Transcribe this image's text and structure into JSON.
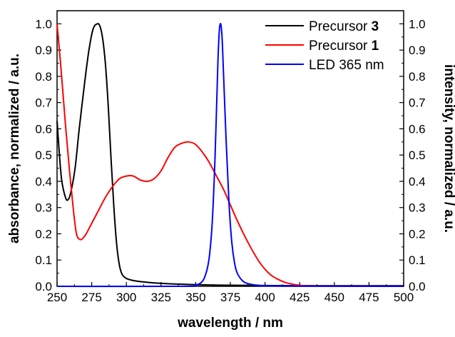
{
  "chart_data": {
    "type": "line",
    "xlabel": "wavelength / nm",
    "ylabel_left": "absorbance, normalized / a.u.",
    "ylabel_right": "intensity, normalized / a.u.",
    "xlim": [
      250,
      500
    ],
    "ylim": [
      0,
      1.05
    ],
    "xticks": [
      250,
      275,
      300,
      325,
      350,
      375,
      400,
      425,
      450,
      475,
      500
    ],
    "yticks": [
      0.0,
      0.1,
      0.2,
      0.3,
      0.4,
      0.5,
      0.6,
      0.7,
      0.8,
      0.9,
      1.0
    ],
    "xtick_labels": [
      "250",
      "275",
      "300",
      "325",
      "350",
      "375",
      "400",
      "425",
      "450",
      "475",
      "500"
    ],
    "ytick_labels": [
      "0.0",
      "0.1",
      "0.2",
      "0.3",
      "0.4",
      "0.5",
      "0.6",
      "0.7",
      "0.8",
      "0.9",
      "1.0"
    ],
    "legend_position": "top-right",
    "grid": false,
    "series": [
      {
        "name_prefix": "Precursor ",
        "name_bold": "3",
        "color": "#000000",
        "x": [
          250,
          253,
          256,
          258,
          260,
          263,
          266,
          270,
          273,
          276,
          279,
          281,
          283,
          285,
          287,
          289,
          291,
          293,
          295,
          297,
          300,
          305,
          310,
          320,
          330,
          340,
          350,
          375,
          400,
          450,
          500
        ],
        "y": [
          0.63,
          0.42,
          0.34,
          0.33,
          0.36,
          0.45,
          0.6,
          0.78,
          0.9,
          0.98,
          1.0,
          0.99,
          0.94,
          0.84,
          0.68,
          0.48,
          0.3,
          0.16,
          0.08,
          0.045,
          0.03,
          0.022,
          0.018,
          0.013,
          0.01,
          0.008,
          0.006,
          0.004,
          0.003,
          0.002,
          0.002
        ]
      },
      {
        "name_prefix": "Precursor ",
        "name_bold": "1",
        "color": "#ff0000",
        "x": [
          250,
          253,
          256,
          259,
          262,
          264,
          266,
          268,
          271,
          275,
          280,
          285,
          290,
          295,
          300,
          305,
          310,
          315,
          320,
          325,
          330,
          335,
          340,
          345,
          350,
          355,
          360,
          365,
          370,
          375,
          380,
          385,
          390,
          395,
          400,
          405,
          410,
          415,
          420,
          425,
          430,
          440,
          450,
          475,
          500
        ],
        "y": [
          1.0,
          0.82,
          0.62,
          0.44,
          0.28,
          0.2,
          0.18,
          0.18,
          0.2,
          0.24,
          0.29,
          0.34,
          0.38,
          0.41,
          0.42,
          0.42,
          0.405,
          0.4,
          0.41,
          0.44,
          0.49,
          0.53,
          0.545,
          0.55,
          0.54,
          0.51,
          0.47,
          0.42,
          0.37,
          0.31,
          0.25,
          0.195,
          0.145,
          0.1,
          0.065,
          0.04,
          0.025,
          0.014,
          0.008,
          0.004,
          0.002,
          0.001,
          0.0,
          0.0,
          0.0
        ]
      },
      {
        "name_prefix": "LED 365 nm",
        "name_bold": "",
        "color": "#0000ff",
        "x": [
          250,
          340,
          350,
          355,
          358,
          360,
          362,
          364,
          366,
          367,
          368,
          369,
          370,
          372,
          374,
          376,
          378,
          380,
          384,
          388,
          395,
          410,
          500
        ],
        "y": [
          0.0,
          0.0,
          0.005,
          0.02,
          0.06,
          0.12,
          0.25,
          0.5,
          0.85,
          0.97,
          1.0,
          0.95,
          0.82,
          0.55,
          0.32,
          0.17,
          0.09,
          0.05,
          0.02,
          0.01,
          0.004,
          0.001,
          0.0
        ]
      }
    ]
  }
}
